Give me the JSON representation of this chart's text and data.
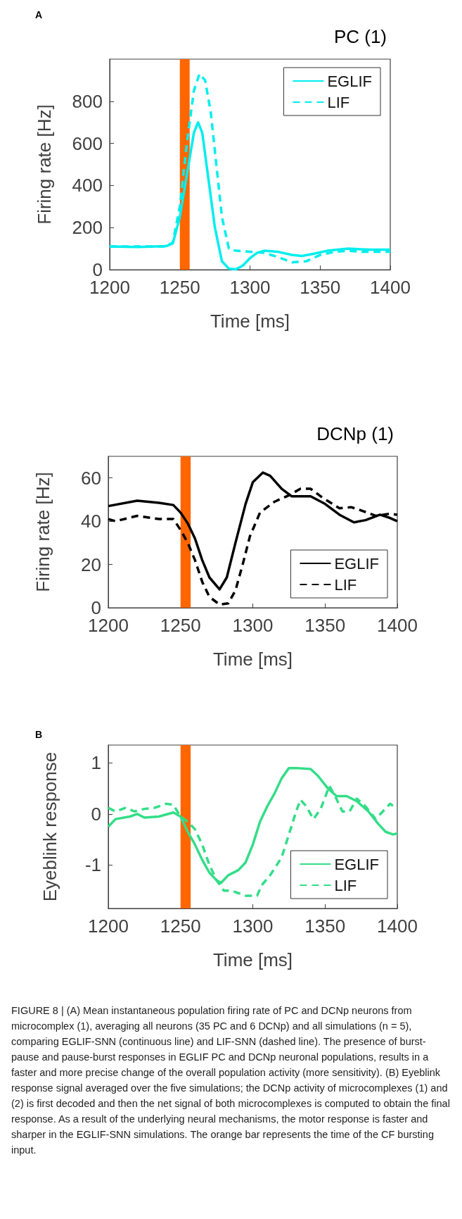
{
  "chart_data": [
    {
      "type": "line",
      "title": "PC (1)",
      "xlabel": "Time [ms]",
      "ylabel": "Firing rate [Hz]",
      "annotations": [
        "A"
      ],
      "xlim": [
        1200,
        1400
      ],
      "xticks": [
        1200,
        1250,
        1300,
        1350,
        1400
      ],
      "ylim": [
        0,
        1000
      ],
      "yticks": [
        0,
        200,
        400,
        600,
        800
      ],
      "legend": "top right",
      "grid": false,
      "marker": "none",
      "bands": [
        {
          "axis": "x",
          "from": 1250,
          "to": 1257,
          "color": "#ff6600"
        }
      ],
      "series": [
        {
          "name": "EGLIF",
          "color": "#00eeee",
          "line_style": "solid",
          "x": [
            1200,
            1220,
            1240,
            1245,
            1250,
            1255,
            1260,
            1263,
            1266,
            1270,
            1275,
            1280,
            1285,
            1290,
            1295,
            1300,
            1305,
            1310,
            1320,
            1330,
            1337,
            1345,
            1355,
            1370,
            1385,
            1400
          ],
          "values": [
            110,
            108,
            112,
            125,
            250,
            450,
            650,
            700,
            650,
            450,
            200,
            40,
            5,
            2,
            20,
            55,
            80,
            90,
            85,
            70,
            65,
            75,
            90,
            100,
            95,
            95
          ]
        },
        {
          "name": "LIF",
          "color": "#00eeee",
          "line_style": "dashed",
          "x": [
            1200,
            1240,
            1245,
            1250,
            1255,
            1260,
            1264,
            1268,
            1272,
            1276,
            1280,
            1285,
            1290,
            1300,
            1310,
            1320,
            1330,
            1340,
            1350,
            1360,
            1370,
            1380,
            1400
          ],
          "values": [
            110,
            110,
            130,
            300,
            600,
            850,
            930,
            900,
            750,
            500,
            250,
            100,
            90,
            85,
            80,
            60,
            35,
            40,
            70,
            85,
            90,
            85,
            85
          ]
        }
      ]
    },
    {
      "type": "line",
      "title": "DCNp (1)",
      "xlabel": "Time [ms]",
      "ylabel": "Firing rate [Hz]",
      "xlim": [
        1200,
        1400
      ],
      "xticks": [
        1200,
        1250,
        1300,
        1350,
        1400
      ],
      "ylim": [
        0,
        70
      ],
      "yticks": [
        0,
        20,
        40,
        60
      ],
      "legend": "bottom right",
      "grid": false,
      "marker": "none",
      "bands": [
        {
          "axis": "x",
          "from": 1250,
          "to": 1257,
          "color": "#ff6600"
        }
      ],
      "series": [
        {
          "name": "EGLIF",
          "color": "#000000",
          "line_style": "solid",
          "x": [
            1200,
            1220,
            1235,
            1245,
            1250,
            1255,
            1260,
            1265,
            1270,
            1277,
            1282,
            1288,
            1295,
            1300,
            1307,
            1312,
            1320,
            1327,
            1340,
            1350,
            1360,
            1370,
            1378,
            1388,
            1395,
            1400
          ],
          "values": [
            47,
            49.5,
            48.5,
            47.5,
            44,
            39,
            32,
            22,
            14,
            8.5,
            14,
            30,
            48,
            58,
            62.5,
            61,
            55,
            51.5,
            51.5,
            48,
            43,
            39.5,
            40.5,
            43,
            41.5,
            40
          ]
        },
        {
          "name": "LIF",
          "color": "#000000",
          "line_style": "dashed",
          "x": [
            1200,
            1205,
            1220,
            1235,
            1245,
            1250,
            1255,
            1260,
            1265,
            1270,
            1277,
            1283,
            1288,
            1293,
            1298,
            1305,
            1315,
            1325,
            1333,
            1340,
            1348,
            1360,
            1368,
            1375,
            1385,
            1395,
            1400
          ],
          "values": [
            41,
            40,
            42.5,
            41,
            41,
            36,
            30,
            22,
            12,
            5,
            1.5,
            2,
            8,
            20,
            33,
            44,
            49,
            52,
            55,
            55,
            51,
            46,
            46.5,
            45,
            42.5,
            43.5,
            43
          ]
        }
      ]
    },
    {
      "type": "line",
      "xlabel": "Time [ms]",
      "ylabel": "Eyeblink response",
      "annotations": [
        "B",
        "FIGURE 8 | (A) Mean instantaneous population firing rate of PC and DCNp neurons from microcomplex (1), averaging all neurons (35 PC and 6 DCNp) and all simulations (n = 5), comparing EGLIF-SNN (continuous line) and LIF-SNN (dashed line). The presence of burst-pause and pause-burst responses in EGLIF PC and DCNp neuronal populations, results in a faster and more precise change of the overall population activity (more sensitivity). (B) Eyeblink response signal averaged over the five simulations; the DCNp activity of microcomplexes (1) and (2) is first decoded and then the net signal of both microcomplexes is computed to obtain the final response. As a result of the underlying neural mechanisms, the motor response is faster and sharper in the EGLIF-SNN simulations. The orange bar represents the time of the CF bursting input."
      ],
      "xlim": [
        1200,
        1400
      ],
      "xticks": [
        1200,
        1250,
        1300,
        1350,
        1400
      ],
      "ylim": [
        -1.85,
        1.35
      ],
      "yticks": [
        -1,
        0,
        1
      ],
      "legend": "bottom right",
      "grid": false,
      "marker": "none",
      "bands": [
        {
          "axis": "x",
          "from": 1250,
          "to": 1257,
          "color": "#ff6600"
        }
      ],
      "series": [
        {
          "name": "EGLIF",
          "color": "#33dd88",
          "line_style": "solid",
          "x": [
            1200,
            1205,
            1215,
            1220,
            1225,
            1235,
            1245,
            1250,
            1255,
            1260,
            1265,
            1270,
            1275,
            1278,
            1283,
            1290,
            1295,
            1300,
            1305,
            1310,
            1315,
            1320,
            1325,
            1330,
            1340,
            1345,
            1352,
            1358,
            1365,
            1372,
            1380,
            1387,
            1392,
            1397,
            1400
          ],
          "values": [
            -0.25,
            -0.1,
            -0.05,
            0,
            -0.07,
            -0.05,
            0.03,
            -0.05,
            -0.35,
            -0.6,
            -0.9,
            -1.15,
            -1.3,
            -1.35,
            -1.2,
            -1.1,
            -0.95,
            -0.6,
            -0.15,
            0.15,
            0.4,
            0.7,
            0.9,
            0.9,
            0.88,
            0.75,
            0.5,
            0.35,
            0.35,
            0.25,
            0.05,
            -0.2,
            -0.35,
            -0.4,
            -0.38
          ]
        },
        {
          "name": "LIF",
          "color": "#33dd88",
          "line_style": "dashed",
          "x": [
            1200,
            1205,
            1212,
            1218,
            1225,
            1232,
            1240,
            1245,
            1250,
            1255,
            1260,
            1265,
            1270,
            1275,
            1280,
            1285,
            1290,
            1295,
            1303,
            1306,
            1312,
            1320,
            1325,
            1330,
            1333,
            1337,
            1342,
            1347,
            1353,
            1357,
            1362,
            1367,
            1372,
            1378,
            1385,
            1390,
            1395,
            1400
          ],
          "values": [
            0.12,
            0.05,
            0.12,
            0.05,
            0.1,
            0.12,
            0.2,
            0.18,
            -0.05,
            -0.15,
            -0.3,
            -0.6,
            -1.0,
            -1.3,
            -1.5,
            -1.5,
            -1.55,
            -1.6,
            -1.6,
            -1.4,
            -1.2,
            -0.85,
            -0.4,
            0.05,
            0.28,
            0.15,
            -0.1,
            0.1,
            0.55,
            0.35,
            0.05,
            0.05,
            0.3,
            0.15,
            -0.1,
            0.05,
            0.2,
            0.1
          ]
        }
      ]
    }
  ]
}
